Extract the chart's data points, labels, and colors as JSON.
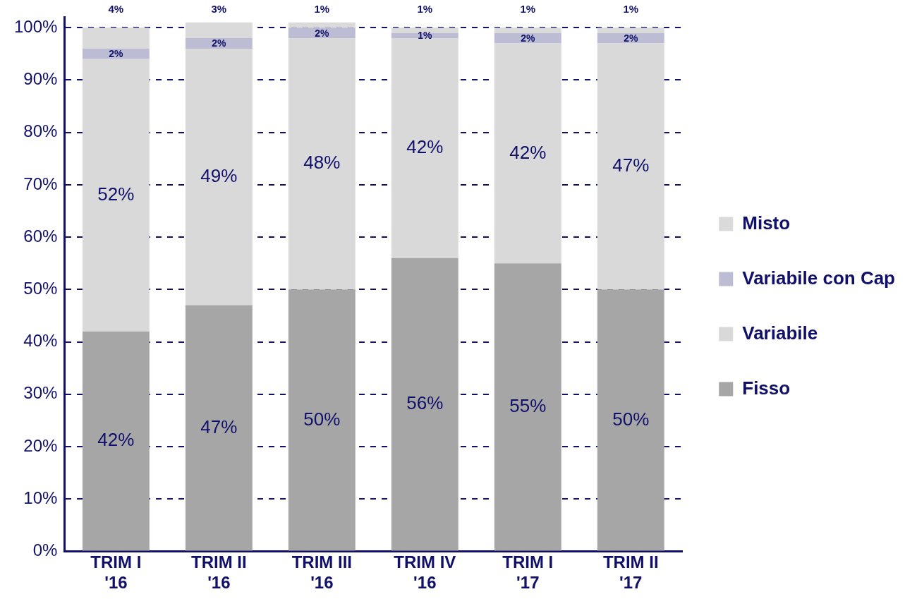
{
  "chart_data": {
    "type": "bar",
    "stacked": true,
    "categories": [
      "TRIM I '16",
      "TRIM II '16",
      "TRIM III '16",
      "TRIM IV '16",
      "TRIM I '17",
      "TRIM II '17"
    ],
    "series": [
      {
        "name": "Fisso",
        "color": "#a6a6a6",
        "values": [
          42,
          47,
          50,
          56,
          55,
          50
        ],
        "value_labels": [
          "42%",
          "47%",
          "50%",
          "56%",
          "55%",
          "50%"
        ]
      },
      {
        "name": "Variabile",
        "color": "#d9d9d9",
        "values": [
          52,
          49,
          48,
          42,
          42,
          47
        ],
        "value_labels": [
          "52%",
          "49%",
          "48%",
          "42%",
          "42%",
          "47%"
        ]
      },
      {
        "name": "Variabile con Cap",
        "color": "#bcbcd4",
        "values": [
          2,
          2,
          2,
          1,
          2,
          2
        ],
        "value_labels": [
          "2%",
          "2%",
          "2%",
          "1%",
          "2%",
          "2%"
        ]
      },
      {
        "name": "Misto",
        "color": "#dadada",
        "values": [
          4,
          3,
          1,
          1,
          1,
          1
        ],
        "value_labels": [
          "4%",
          "3%",
          "1%",
          "1%",
          "1%",
          "1%"
        ]
      }
    ],
    "ylim": [
      0,
      102
    ],
    "yticks": [
      {
        "value": 0,
        "label": "0%"
      },
      {
        "value": 10,
        "label": "10%"
      },
      {
        "value": 20,
        "label": "20%"
      },
      {
        "value": 30,
        "label": "30%"
      },
      {
        "value": 40,
        "label": "40%"
      },
      {
        "value": 50,
        "label": "50%"
      },
      {
        "value": 60,
        "label": "60%"
      },
      {
        "value": 70,
        "label": "70%"
      },
      {
        "value": 80,
        "label": "80%"
      },
      {
        "value": 90,
        "label": "90%"
      },
      {
        "value": 100,
        "label": "100%"
      }
    ],
    "grid": "y",
    "legend": "right"
  }
}
